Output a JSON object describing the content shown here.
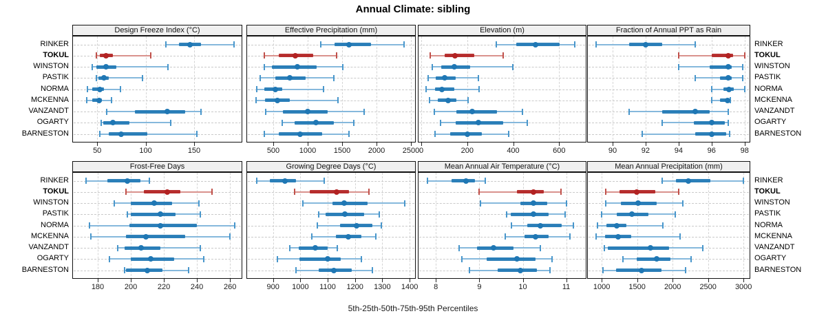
{
  "title": "Annual Climate: sibling",
  "caption": "5th-25th-50th-75th-95th Percentiles",
  "percentile_labels": [
    "5th",
    "25th",
    "50th",
    "75th",
    "95th"
  ],
  "stations": [
    "RINKER",
    "TOKUL",
    "WINSTON",
    "PASTIK",
    "NORMA",
    "MCKENNA",
    "VANZANDT",
    "OGARTY",
    "BARNESTON"
  ],
  "highlight_station": "TOKUL",
  "colors": {
    "series_main": "#1f77b4",
    "series_light": "#85b8dc",
    "series_cap": "#4896cb",
    "highlight_main": "#b22222",
    "highlight_light": "#d9918c",
    "highlight_cap": "#c0504a",
    "grid": "#d4d4d4",
    "guide": "#c9c9c9",
    "header_bg": "#f0f0f0",
    "border": "#111111"
  },
  "chart_data": {
    "type": "scatter",
    "style": "percentile-dot-whisker-trellis",
    "legend_position": "none",
    "grid": "dashed-vertical-and-row-guides",
    "percentiles": [
      5,
      25,
      50,
      75,
      95
    ],
    "panels": [
      {
        "title": "Design Freeze Index (°C)",
        "row": 0,
        "col": 0,
        "xlim": [
          25,
          199
        ],
        "ticks": [
          50,
          100,
          150
        ],
        "series": {
          "RINKER": [
            121,
            134,
            146,
            157,
            191
          ],
          "TOKUL": [
            49,
            53,
            59,
            66,
            105
          ],
          "WINSTON": [
            45,
            49,
            59,
            70,
            123
          ],
          "PASTIK": [
            49,
            51,
            57,
            62,
            97
          ],
          "NORMA": [
            40,
            45,
            53,
            57,
            74
          ],
          "MCKENNA": [
            39,
            45,
            52,
            55,
            65
          ],
          "VANZANDT": [
            60,
            89,
            122,
            141,
            157
          ],
          "OGARTY": [
            54,
            56,
            66,
            83,
            126
          ],
          "BARNESTON": [
            53,
            62,
            75,
            102,
            153
          ]
        }
      },
      {
        "title": "Effective Precipitation (mm)",
        "row": 0,
        "col": 1,
        "xlim": [
          120,
          2560
        ],
        "ticks": [
          500,
          1000,
          1500,
          2000,
          2500
        ],
        "series": {
          "RINKER": [
            1185,
            1393,
            1601,
            1922,
            2401
          ],
          "TOKUL": [
            367,
            582,
            820,
            1078,
            1419
          ],
          "WINSTON": [
            367,
            483,
            847,
            1128,
            1508
          ],
          "PASTIK": [
            311,
            533,
            738,
            972,
            1376
          ],
          "NORMA": [
            262,
            368,
            533,
            632,
            1227
          ],
          "MCKENNA": [
            252,
            377,
            556,
            741,
            1436
          ],
          "VANZANDT": [
            394,
            642,
            996,
            1287,
            1816
          ],
          "OGARTY": [
            625,
            808,
            1121,
            1376,
            1674
          ],
          "BARNESTON": [
            367,
            575,
            890,
            1210,
            1601
          ]
        }
      },
      {
        "title": "Elevation (m)",
        "row": 0,
        "col": 2,
        "xlim": [
          -12,
          716
        ],
        "ticks": [
          0,
          200,
          400,
          600
        ],
        "series": {
          "RINKER": [
            326,
            413,
            497,
            601,
            668
          ],
          "TOKUL": [
            39,
            101,
            148,
            230,
            355
          ],
          "WINSTON": [
            47,
            86,
            144,
            213,
            398
          ],
          "PASTIK": [
            29,
            62,
            103,
            151,
            249
          ],
          "NORMA": [
            22,
            59,
            91,
            144,
            252
          ],
          "MCKENNA": [
            35,
            71,
            118,
            154,
            205
          ],
          "VANZANDT": [
            56,
            154,
            223,
            329,
            440
          ],
          "OGARTY": [
            84,
            151,
            249,
            358,
            462
          ],
          "BARNESTON": [
            59,
            126,
            200,
            264,
            381
          ]
        }
      },
      {
        "title": "Fraction of Annual PPT as Rain",
        "row": 0,
        "col": 3,
        "xlim": [
          88.5,
          98.3
        ],
        "ticks": [
          90,
          92,
          94,
          96,
          98
        ],
        "series": {
          "RINKER": [
            89.0,
            91.0,
            92.0,
            93.0,
            95.0
          ],
          "TOKUL": [
            94.0,
            96.0,
            97.0,
            97.3,
            98.0
          ],
          "WINSTON": [
            94.0,
            95.9,
            97.0,
            97.2,
            97.9
          ],
          "PASTIK": [
            95.0,
            96.5,
            97.0,
            97.2,
            97.9
          ],
          "NORMA": [
            96.0,
            96.7,
            97.05,
            97.35,
            98.0
          ],
          "MCKENNA": [
            96.0,
            96.5,
            96.95,
            97.05,
            97.15
          ],
          "VANZANDT": [
            91.0,
            93.0,
            95.0,
            95.9,
            97.0
          ],
          "OGARTY": [
            93.0,
            94.9,
            96.0,
            96.8,
            97.0
          ],
          "BARNESTON": [
            91.8,
            95.0,
            96.0,
            96.9,
            97.1
          ]
        }
      },
      {
        "title": "Frost-Free Days",
        "row": 1,
        "col": 0,
        "xlim": [
          165,
          267
        ],
        "ticks": [
          180,
          200,
          220,
          240,
          260
        ],
        "series": {
          "RINKER": [
            173,
            186,
            198,
            206,
            211
          ],
          "TOKUL": [
            197,
            208,
            222,
            230,
            249
          ],
          "WINSTON": [
            190,
            200,
            214,
            225,
            241
          ],
          "PASTIK": [
            198,
            200,
            218,
            227,
            242
          ],
          "NORMA": [
            175,
            199,
            218,
            240,
            263
          ],
          "MCKENNA": [
            176,
            197,
            209,
            233,
            260
          ],
          "VANZANDT": [
            192,
            196,
            206,
            218,
            242
          ],
          "OGARTY": [
            187,
            200,
            212,
            226,
            244
          ],
          "BARNESTON": [
            196,
            197,
            210,
            219,
            235
          ]
        }
      },
      {
        "title": "Growing Degree Days (°C)",
        "row": 1,
        "col": 1,
        "xlim": [
          805,
          1420
        ],
        "ticks": [
          900,
          1000,
          1100,
          1200,
          1300,
          1400
        ],
        "series": {
          "RINKER": [
            839,
            888,
            943,
            983,
            1088
          ],
          "TOKUL": [
            979,
            1035,
            1133,
            1177,
            1250
          ],
          "WINSTON": [
            1010,
            1117,
            1160,
            1246,
            1381
          ],
          "PASTIK": [
            1066,
            1093,
            1164,
            1233,
            1288
          ],
          "NORMA": [
            1063,
            1146,
            1206,
            1263,
            1296
          ],
          "MCKENNA": [
            1041,
            1129,
            1175,
            1224,
            1277
          ],
          "VANZANDT": [
            960,
            993,
            1054,
            1099,
            1135
          ],
          "OGARTY": [
            917,
            996,
            1099,
            1148,
            1224
          ],
          "BARNESTON": [
            985,
            1066,
            1123,
            1189,
            1263
          ]
        }
      },
      {
        "title": "Mean Annual Air Temperature (°C)",
        "row": 1,
        "col": 2,
        "xlim": [
          7.6,
          11.45
        ],
        "ticks": [
          8,
          9,
          10,
          11
        ],
        "series": {
          "RINKER": [
            7.8,
            8.36,
            8.69,
            8.9,
            9.13
          ],
          "TOKUL": [
            9.0,
            9.87,
            10.25,
            10.48,
            10.88
          ],
          "WINSTON": [
            9.03,
            9.95,
            10.25,
            10.57,
            11.0
          ],
          "PASTIK": [
            9.63,
            9.73,
            10.25,
            10.59,
            10.98
          ],
          "NORMA": [
            9.74,
            10.1,
            10.41,
            10.89,
            11.17
          ],
          "MCKENNA": [
            9.59,
            10.04,
            10.29,
            10.59,
            11.08
          ],
          "VANZANDT": [
            8.53,
            8.95,
            9.33,
            9.78,
            10.4
          ],
          "OGARTY": [
            8.59,
            9.17,
            9.87,
            10.29,
            10.67
          ],
          "BARNESTON": [
            8.77,
            9.42,
            9.95,
            10.32,
            10.63
          ]
        }
      },
      {
        "title": "Mean Annual Precipitation (mm)",
        "row": 1,
        "col": 3,
        "xlim": [
          805,
          3085
        ],
        "ticks": [
          1000,
          1500,
          2000,
          2500,
          3000
        ],
        "series": {
          "RINKER": [
            1854,
            2050,
            2223,
            2536,
            3000
          ],
          "TOKUL": [
            1058,
            1250,
            1490,
            1753,
            2088
          ],
          "WINSTON": [
            1058,
            1269,
            1512,
            1778,
            2146
          ],
          "PASTIK": [
            1000,
            1208,
            1426,
            1657,
            2040
          ],
          "NORMA": [
            937,
            1064,
            1208,
            1346,
            1864
          ],
          "MCKENNA": [
            920,
            1048,
            1230,
            1417,
            2104
          ],
          "VANZANDT": [
            1038,
            1090,
            1688,
            1950,
            2425
          ],
          "OGARTY": [
            1298,
            1490,
            1778,
            1970,
            2264
          ],
          "BARNESTON": [
            1016,
            1202,
            1561,
            1848,
            2185
          ]
        }
      }
    ]
  }
}
